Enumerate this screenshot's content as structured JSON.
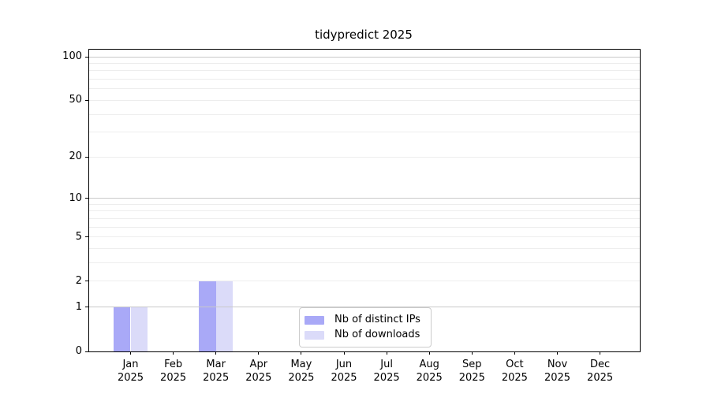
{
  "chart_data": {
    "type": "bar",
    "title": "tidypredict 2025",
    "x_ticks": [
      {
        "line1": "Jan",
        "line2": "2025"
      },
      {
        "line1": "Feb",
        "line2": "2025"
      },
      {
        "line1": "Mar",
        "line2": "2025"
      },
      {
        "line1": "Apr",
        "line2": "2025"
      },
      {
        "line1": "May",
        "line2": "2025"
      },
      {
        "line1": "Jun",
        "line2": "2025"
      },
      {
        "line1": "Jul",
        "line2": "2025"
      },
      {
        "line1": "Aug",
        "line2": "2025"
      },
      {
        "line1": "Sep",
        "line2": "2025"
      },
      {
        "line1": "Oct",
        "line2": "2025"
      },
      {
        "line1": "Nov",
        "line2": "2025"
      },
      {
        "line1": "Dec",
        "line2": "2025"
      }
    ],
    "series": [
      {
        "name": "Nb of distinct IPs",
        "color": "#a9a9f7",
        "values": [
          1,
          0,
          2,
          0,
          0,
          0,
          0,
          0,
          0,
          0,
          0,
          0
        ]
      },
      {
        "name": "Nb of downloads",
        "color": "#dbdbf9",
        "values": [
          1,
          0,
          2,
          0,
          0,
          0,
          0,
          0,
          0,
          0,
          0,
          0
        ]
      }
    ],
    "y_ticks": [
      0,
      1,
      2,
      5,
      10,
      20,
      50,
      100
    ],
    "y_scale": "log10(value+1)",
    "y_max_value": 112,
    "grid_major_values": [
      1,
      10,
      100
    ],
    "grid_minor_values": [
      2,
      3,
      4,
      5,
      6,
      7,
      8,
      9,
      20,
      30,
      40,
      50,
      60,
      70,
      80,
      90
    ],
    "legend": {
      "position": "inside-bottom-center"
    },
    "colors": {
      "grid_major": "#c9c9c9",
      "grid_minor": "#ededed",
      "axis": "#000000",
      "background": "#ffffff"
    }
  }
}
